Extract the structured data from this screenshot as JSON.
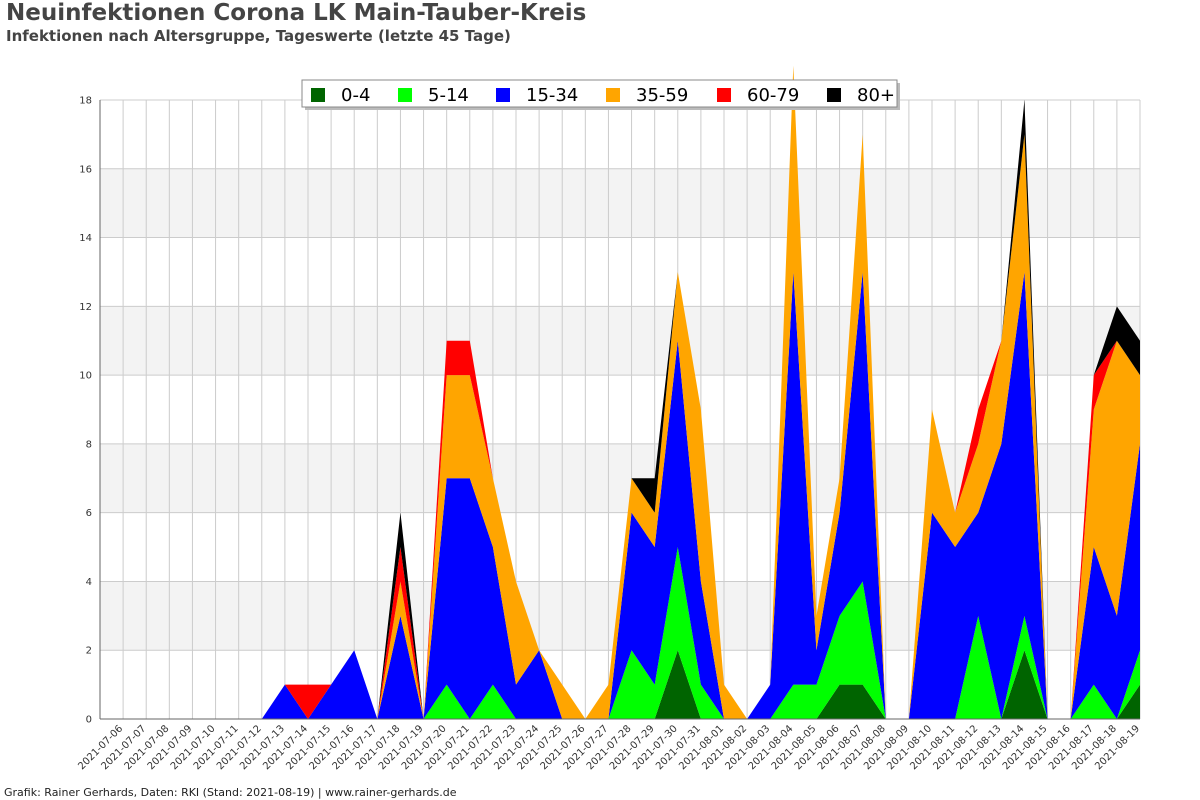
{
  "title": "Neuinfektionen Corona LK Main-Tauber-Kreis",
  "subtitle": "Infektionen nach Altersgruppe, Tageswerte (letzte 45 Tage)",
  "footer": "Grafik: Rainer Gerhards, Daten: RKI (Stand: 2021-08-19) | www.rainer-gerhards.de",
  "chart_data": {
    "type": "area",
    "stacked": true,
    "grid": true,
    "legend_position": "top",
    "ylim": [
      0,
      18
    ],
    "yticks": [
      0,
      2,
      4,
      6,
      8,
      10,
      12,
      14,
      16,
      18
    ],
    "xlabel": "",
    "ylabel": "",
    "x": [
      "2021-07-05",
      "2021-07-06",
      "2021-07-07",
      "2021-07-08",
      "2021-07-09",
      "2021-07-10",
      "2021-07-11",
      "2021-07-12",
      "2021-07-13",
      "2021-07-14",
      "2021-07-15",
      "2021-07-16",
      "2021-07-17",
      "2021-07-18",
      "2021-07-19",
      "2021-07-20",
      "2021-07-21",
      "2021-07-22",
      "2021-07-23",
      "2021-07-24",
      "2021-07-25",
      "2021-07-26",
      "2021-07-27",
      "2021-07-28",
      "2021-07-29",
      "2021-07-30",
      "2021-07-31",
      "2021-08-01",
      "2021-08-02",
      "2021-08-03",
      "2021-08-04",
      "2021-08-05",
      "2021-08-06",
      "2021-08-07",
      "2021-08-08",
      "2021-08-09",
      "2021-08-10",
      "2021-08-11",
      "2021-08-12",
      "2021-08-13",
      "2021-08-14",
      "2021-08-15",
      "2021-08-16",
      "2021-08-17",
      "2021-08-18",
      "2021-08-19"
    ],
    "series": [
      {
        "name": "0-4",
        "color": "#006400",
        "values": [
          0,
          0,
          0,
          0,
          0,
          0,
          0,
          0,
          0,
          0,
          0,
          0,
          0,
          0,
          0,
          0,
          0,
          0,
          0,
          0,
          0,
          0,
          0,
          0,
          0,
          2,
          0,
          0,
          0,
          0,
          0,
          0,
          1,
          1,
          0,
          0,
          0,
          0,
          0,
          0,
          2,
          0,
          0,
          0,
          0,
          1
        ]
      },
      {
        "name": "5-14",
        "color": "#00ff00",
        "values": [
          0,
          0,
          0,
          0,
          0,
          0,
          0,
          0,
          0,
          0,
          0,
          0,
          0,
          0,
          0,
          1,
          0,
          1,
          0,
          0,
          0,
          0,
          0,
          2,
          1,
          3,
          1,
          0,
          0,
          0,
          1,
          1,
          2,
          3,
          0,
          0,
          0,
          0,
          3,
          0,
          1,
          0,
          0,
          1,
          0,
          1
        ]
      },
      {
        "name": "15-34",
        "color": "#0000ff",
        "values": [
          0,
          0,
          0,
          0,
          0,
          0,
          0,
          0,
          1,
          0,
          1,
          2,
          0,
          3,
          0,
          6,
          7,
          4,
          1,
          2,
          0,
          0,
          0,
          4,
          4,
          6,
          3,
          0,
          0,
          1,
          12,
          1,
          3,
          9,
          0,
          0,
          6,
          5,
          3,
          8,
          10,
          0,
          0,
          4,
          3,
          6
        ]
      },
      {
        "name": "35-59",
        "color": "#ffa500",
        "values": [
          0,
          0,
          0,
          0,
          0,
          0,
          0,
          0,
          0,
          0,
          0,
          0,
          0,
          1,
          0,
          3,
          3,
          2,
          3,
          0,
          1,
          0,
          1,
          1,
          1,
          2,
          5,
          1,
          0,
          0,
          6,
          1,
          1,
          4,
          0,
          0,
          3,
          1,
          2,
          3,
          4,
          0,
          0,
          4,
          8,
          2
        ]
      },
      {
        "name": "60-79",
        "color": "#ff0000",
        "values": [
          0,
          0,
          0,
          0,
          0,
          0,
          0,
          0,
          0,
          1,
          0,
          0,
          0,
          1,
          0,
          1,
          1,
          0,
          0,
          0,
          0,
          0,
          0,
          0,
          0,
          0,
          0,
          0,
          0,
          0,
          0,
          0,
          0,
          0,
          0,
          0,
          0,
          0,
          1,
          0,
          0,
          0,
          0,
          1,
          0,
          0
        ]
      },
      {
        "name": "80+",
        "color": "#000000",
        "values": [
          0,
          0,
          0,
          0,
          0,
          0,
          0,
          0,
          0,
          0,
          0,
          0,
          0,
          1,
          0,
          0,
          0,
          0,
          0,
          0,
          0,
          0,
          0,
          0,
          1,
          0,
          0,
          0,
          0,
          0,
          0,
          0,
          0,
          0,
          0,
          0,
          0,
          0,
          0,
          0,
          1,
          0,
          0,
          0,
          1,
          1
        ]
      }
    ]
  }
}
